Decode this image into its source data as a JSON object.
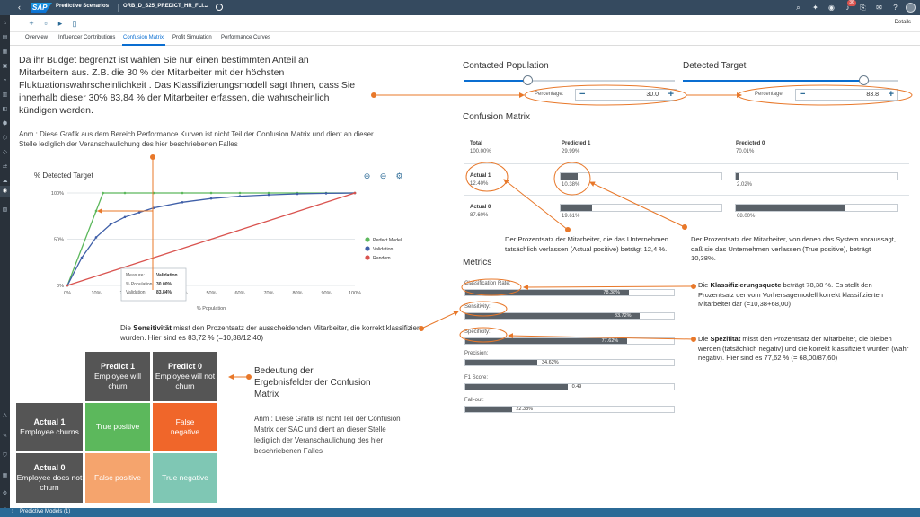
{
  "header": {
    "app_title": "Predictive Scenarios",
    "doc_title": "ORB_D_S25_PREDICT_HR_FLI...",
    "notification_count": "36"
  },
  "toolbar": {
    "details_label": "Details"
  },
  "tabs": [
    "Overview",
    "Influencer Contributions",
    "Confusion Matrix",
    "Profit Simulation",
    "Performance Curves"
  ],
  "footer": {
    "label": "Predictive Models (1)"
  },
  "intro": {
    "text": "Da ihr Budget begrenzt ist wählen Sie nur einen bestimmten Anteil an Mitarbeitern aus. Z.B. die 30 % der Mitarbeiter mit der höchsten Fluktuationswahrscheinlichkeit . Das Klassifizierungsmodell sagt Ihnen, dass Sie innerhalb dieser 30% 83,84 % der Mitarbeiter erfassen, die wahrscheinlich kündigen werden.",
    "note": "Anm.: Diese Grafik aus dem Bereich Performance Kurven ist nicht Teil der Confusion Matrix und dient an dieser Stelle lediglich der Veranschaulichung des hier beschriebenen Falles"
  },
  "chart_data": {
    "type": "line",
    "title": "% Detected Target",
    "xlabel": "% Population",
    "ylabel": "",
    "xlim": [
      0,
      100
    ],
    "ylim": [
      0,
      100
    ],
    "x_ticks": [
      "0%",
      "10%",
      "20%",
      "30%",
      "40%",
      "50%",
      "60%",
      "70%",
      "80%",
      "90%",
      "100%"
    ],
    "y_ticks": [
      "0%",
      "50%",
      "100%"
    ],
    "series": [
      {
        "name": "Perfect Model",
        "color": "#5cb85c",
        "x": [
          0,
          10,
          12.4,
          20,
          30,
          40,
          50,
          60,
          70,
          80,
          90,
          100
        ],
        "y": [
          0,
          80.6,
          100,
          100,
          100,
          100,
          100,
          100,
          100,
          100,
          100,
          100
        ]
      },
      {
        "name": "Validation",
        "color": "#3f5fa8",
        "x": [
          0,
          5,
          10,
          15,
          20,
          25,
          30,
          40,
          50,
          60,
          70,
          80,
          90,
          100
        ],
        "y": [
          0,
          30,
          52,
          66,
          74,
          79,
          83.84,
          90,
          94,
          96.5,
          98,
          99,
          99.6,
          100
        ]
      },
      {
        "name": "Random",
        "color": "#d9534f",
        "x": [
          0,
          100
        ],
        "y": [
          0,
          100
        ]
      }
    ],
    "tooltip": {
      "header_measure": "Measure:",
      "header_value": "Validation",
      "rows": [
        {
          "label": "% Population",
          "value": "30.00%"
        },
        {
          "label": "Validation",
          "value": "83.84%"
        }
      ]
    },
    "legend_position": "right"
  },
  "sensitivity_text": "Die Sensitivität misst den Prozentsatz der ausscheidenden Mitarbeiter, die korrekt klassifiziert wurden. Hier sind es 83,72 % (=10,38/12,40)",
  "matrix_graphic": {
    "predict1": {
      "title": "Predict 1",
      "sub": "Employee will churn"
    },
    "predict0": {
      "title": "Predict 0",
      "sub": "Employee will not churn"
    },
    "actual1": {
      "title": "Actual 1",
      "sub": "Employee churns"
    },
    "actual0": {
      "title": "Actual 0",
      "sub": "Employee does not churn"
    },
    "tp": "True positive",
    "fn": "False negative",
    "fp": "False positive",
    "tn": "True negative",
    "heading": "Bedeutung der Ergebnisfelder der Confusion Matrix",
    "note": "Anm.: Diese Grafik ist nicht Teil der Confusion Matrix der SAC und dient an dieser Stelle lediglich der Veranschaulichung des hier beschriebenen Falles"
  },
  "controls": {
    "contacted_title": "Contacted Population",
    "detected_title": "Detected Target",
    "pct_label": "Percentage:",
    "contacted_value": "30.0",
    "detected_value": "83.8",
    "contacted_fraction": 0.3,
    "detected_fraction": 0.838
  },
  "confusion": {
    "title": "Confusion Matrix",
    "total_label": "Total",
    "total_value": "100.00%",
    "pred1_label": "Predicted 1",
    "pred1_value": "29.99%",
    "pred0_label": "Predicted 0",
    "pred0_value": "70.01%",
    "actual1_label": "Actual 1",
    "actual1_value": "12.40%",
    "actual0_label": "Actual 0",
    "actual0_value": "87.60%",
    "a1p1": "10.38%",
    "a1p0": "2.02%",
    "a0p1": "19.61%",
    "a0p0": "68.00%",
    "a1p1_frac": 0.1038,
    "a1p0_frac": 0.0202,
    "a0p1_frac": 0.1961,
    "a0p0_frac": 0.68
  },
  "metrics": {
    "title": "Metrics",
    "items": [
      {
        "label": "Classification Rate:",
        "value": "78.38%",
        "frac": 0.7838
      },
      {
        "label": "Sensitivity:",
        "value": "83.72%",
        "frac": 0.8372
      },
      {
        "label": "Specificity:",
        "value": "77.62%",
        "frac": 0.7762
      },
      {
        "label": "Precision:",
        "value": "34.62%",
        "frac": 0.3462
      },
      {
        "label": "F1 Score:",
        "value": "0.49",
        "frac": 0.49
      },
      {
        "label": "Fall-out:",
        "value": "22.38%",
        "frac": 0.2238
      }
    ]
  },
  "annotations": {
    "actual_positive": "Der Prozentsatz der Mitarbeiter, die das Unternehmen tatsächlich verlassen (Actual positive) beträgt 12,4 %.",
    "true_positive": "Der Prozentsatz der Mitarbeiter, von denen das System voraussagt, daß sie das Unternehmen verlassen (True positive), beträgt 10,38%.",
    "classification": "Die Klassifizierungsquote beträgt 78,38 %. Es stellt den Prozentsatz der vom Vorhersagemodell korrekt klassifizierten Mitarbeiter dar (=10,38+68,00)",
    "specificity": "Die Spezifität misst den Prozentsatz der Mitarbeiter, die bleiben werden (tatsächlich negativ) und die korrekt klassifiziert wurden (wahr negativ). Hier sind es 77,62 % (= 68,00/87,60)"
  },
  "colors": {
    "shell": "#354a5f",
    "annotation_orange": "#e8782a",
    "tp": "#5cb85c",
    "fn": "#f0662a",
    "fp": "#f5a46d",
    "tn": "#7fc7b4",
    "matrix_header": "#555555"
  }
}
